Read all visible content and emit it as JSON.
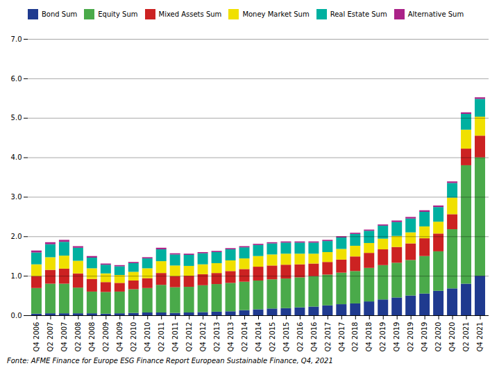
{
  "chart_data": {
    "type": "bar",
    "stacked": true,
    "categories": [
      "Q4 2006",
      "Q2 2007",
      "Q4 2007",
      "Q2 2008",
      "Q4 2008",
      "Q2 2009",
      "Q4 2009",
      "Q2 2010",
      "Q4 2010",
      "Q2 2011",
      "Q4 2011",
      "Q2 2012",
      "Q4 2012",
      "Q2 2013",
      "Q4 2013",
      "Q2 2014",
      "Q4 2014",
      "Q2 2015",
      "Q4 2015",
      "Q2 2016",
      "Q4 2016",
      "Q2 2017",
      "Q4 2017",
      "Q2 2018",
      "Q4 2018",
      "Q2 2019",
      "Q4 2019",
      "Q2 2019",
      "Q4 2019",
      "Q2 2020",
      "Q4 2020",
      "Q2 2021",
      "Q4 2021"
    ],
    "series": [
      {
        "name": "Bond Sum",
        "color": "#1f3a8f",
        "values": [
          0.04,
          0.05,
          0.05,
          0.05,
          0.05,
          0.04,
          0.05,
          0.06,
          0.07,
          0.07,
          0.06,
          0.07,
          0.08,
          0.09,
          0.1,
          0.13,
          0.15,
          0.17,
          0.18,
          0.2,
          0.22,
          0.25,
          0.28,
          0.3,
          0.35,
          0.4,
          0.45,
          0.5,
          0.55,
          0.62,
          0.68,
          0.8,
          1.0
        ]
      },
      {
        "name": "Equity Sum",
        "color": "#4aaa4a",
        "values": [
          0.65,
          0.75,
          0.75,
          0.65,
          0.55,
          0.55,
          0.55,
          0.6,
          0.62,
          0.7,
          0.65,
          0.65,
          0.68,
          0.7,
          0.72,
          0.72,
          0.73,
          0.74,
          0.75,
          0.76,
          0.77,
          0.78,
          0.8,
          0.82,
          0.85,
          0.87,
          0.88,
          0.9,
          0.95,
          1.0,
          1.5,
          3.0,
          3.0
        ]
      },
      {
        "name": "Mixed Assets Sum",
        "color": "#cc2222",
        "values": [
          0.3,
          0.35,
          0.38,
          0.36,
          0.32,
          0.25,
          0.22,
          0.22,
          0.25,
          0.3,
          0.28,
          0.28,
          0.28,
          0.28,
          0.3,
          0.32,
          0.35,
          0.35,
          0.35,
          0.33,
          0.32,
          0.32,
          0.33,
          0.37,
          0.38,
          0.4,
          0.4,
          0.42,
          0.45,
          0.45,
          0.38,
          0.42,
          0.55
        ]
      },
      {
        "name": "Money Market Sum",
        "color": "#f0e000",
        "values": [
          0.3,
          0.32,
          0.33,
          0.32,
          0.27,
          0.22,
          0.2,
          0.22,
          0.25,
          0.3,
          0.27,
          0.25,
          0.25,
          0.25,
          0.27,
          0.27,
          0.27,
          0.28,
          0.28,
          0.27,
          0.25,
          0.25,
          0.27,
          0.27,
          0.25,
          0.27,
          0.28,
          0.28,
          0.3,
          0.3,
          0.42,
          0.48,
          0.48
        ]
      },
      {
        "name": "Real Estate Sum",
        "color": "#00b0a0",
        "values": [
          0.3,
          0.33,
          0.35,
          0.33,
          0.27,
          0.22,
          0.22,
          0.22,
          0.25,
          0.3,
          0.28,
          0.28,
          0.28,
          0.28,
          0.28,
          0.28,
          0.28,
          0.28,
          0.28,
          0.28,
          0.28,
          0.28,
          0.29,
          0.3,
          0.31,
          0.33,
          0.35,
          0.35,
          0.37,
          0.37,
          0.37,
          0.4,
          0.45
        ]
      },
      {
        "name": "Alternative Sum",
        "color": "#aa2288",
        "values": [
          0.05,
          0.05,
          0.05,
          0.04,
          0.04,
          0.03,
          0.03,
          0.03,
          0.03,
          0.04,
          0.03,
          0.03,
          0.03,
          0.03,
          0.03,
          0.03,
          0.03,
          0.03,
          0.03,
          0.03,
          0.03,
          0.03,
          0.03,
          0.03,
          0.03,
          0.03,
          0.04,
          0.04,
          0.04,
          0.04,
          0.04,
          0.04,
          0.04
        ]
      }
    ],
    "ylim": [
      0,
      7
    ],
    "yticks": [
      0,
      1,
      2,
      3,
      4,
      5,
      6,
      7
    ],
    "grid": true,
    "legend": "top",
    "caption": "Fonte: AFME Finance for Europe ESG Finance Report European Sustainable Finance, Q4, 2021"
  }
}
